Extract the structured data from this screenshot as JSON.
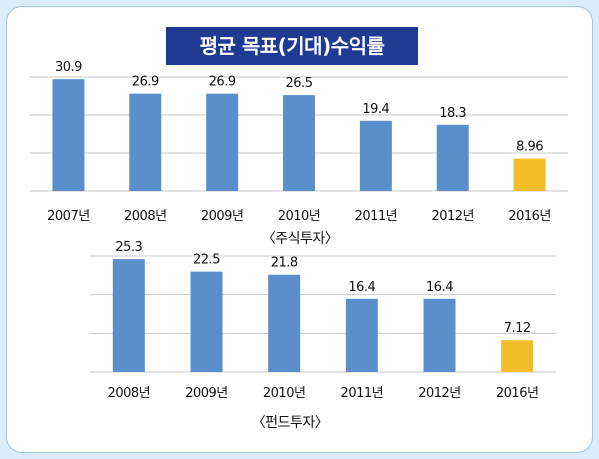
{
  "title": "평균 목표(기대)수익률",
  "colors": {
    "bar": "#5b8fcc",
    "highlight": "#f2bd28",
    "grid": "#c8c8c8",
    "title_bg": "#1f3a93"
  },
  "chart_data": [
    {
      "type": "bar",
      "caption": "〈주식투자〉",
      "categories": [
        "2007년",
        "2008년",
        "2009년",
        "2010년",
        "2011년",
        "2012년",
        "2016년"
      ],
      "values": [
        30.9,
        26.9,
        26.9,
        26.5,
        19.4,
        18.3,
        8.96
      ],
      "labels": [
        "30.9",
        "26.9",
        "26.9",
        "26.5",
        "19.4",
        "18.3",
        "8.96"
      ],
      "highlight_index": 6,
      "ylim": [
        0,
        31.5
      ],
      "grid": true
    },
    {
      "type": "bar",
      "caption": "〈펀드투자〉",
      "categories": [
        "2008년",
        "2009년",
        "2010년",
        "2011년",
        "2012년",
        "2016년"
      ],
      "values": [
        25.3,
        22.5,
        21.8,
        16.4,
        16.4,
        7.12
      ],
      "labels": [
        "25.3",
        "22.5",
        "21.8",
        "16.4",
        "16.4",
        "7.12"
      ],
      "highlight_index": 5,
      "ylim": [
        0,
        26
      ],
      "grid": true
    }
  ]
}
